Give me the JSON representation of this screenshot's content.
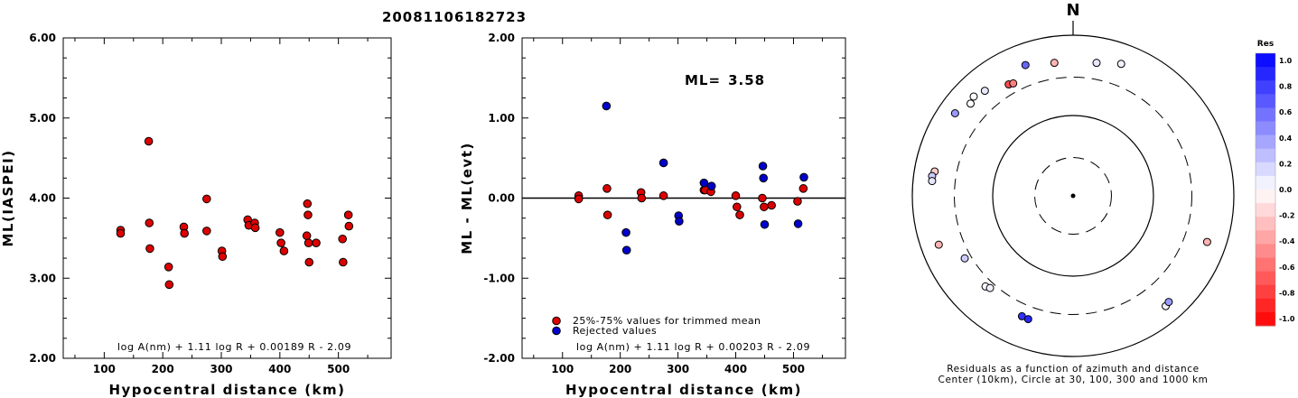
{
  "title": "20081106182723",
  "chart_data": [
    {
      "type": "scatter",
      "name": "ml-vs-distance",
      "xlabel": "Hypocentral distance (km)",
      "ylabel": "ML(IASPEI)",
      "xlim": [
        30,
        590
      ],
      "ylim": [
        2.0,
        6.0
      ],
      "x_ticks": [
        "100",
        "200",
        "300",
        "400",
        "500"
      ],
      "y_ticks": [
        "2.00",
        "3.00",
        "4.00",
        "5.00",
        "6.00"
      ],
      "annotation": "log A(nm) + 1.11 log R + 0.00189 R - 2.09",
      "point_color": "#dd0000",
      "points": [
        [
          128,
          3.6
        ],
        [
          128,
          3.56
        ],
        [
          176,
          4.71
        ],
        [
          177,
          3.69
        ],
        [
          178,
          3.37
        ],
        [
          210,
          3.14
        ],
        [
          211,
          2.92
        ],
        [
          236,
          3.64
        ],
        [
          237,
          3.56
        ],
        [
          275,
          3.99
        ],
        [
          275,
          3.59
        ],
        [
          301,
          3.34
        ],
        [
          302,
          3.27
        ],
        [
          345,
          3.73
        ],
        [
          347,
          3.66
        ],
        [
          357,
          3.69
        ],
        [
          358,
          3.63
        ],
        [
          400,
          3.57
        ],
        [
          402,
          3.44
        ],
        [
          407,
          3.34
        ],
        [
          446,
          3.53
        ],
        [
          447,
          3.93
        ],
        [
          448,
          3.79
        ],
        [
          449,
          3.44
        ],
        [
          450,
          3.2
        ],
        [
          462,
          3.44
        ],
        [
          507,
          3.49
        ],
        [
          508,
          3.2
        ],
        [
          517,
          3.79
        ],
        [
          518,
          3.65
        ]
      ]
    },
    {
      "type": "scatter",
      "name": "residual-vs-distance",
      "xlabel": "Hypocentral distance (km)",
      "ylabel": "ML - ML(evt)",
      "xlim": [
        30,
        590
      ],
      "ylim": [
        -2.0,
        2.0
      ],
      "x_ticks": [
        "100",
        "200",
        "300",
        "400",
        "500"
      ],
      "y_ticks": [
        "-2.00",
        "-1.00",
        "0.00",
        "1.00",
        "2.00"
      ],
      "ml_label": "ML=",
      "ml_value": "3.58",
      "annotation": "log A(nm) + 1.11 log R + 0.00203 R - 2.09",
      "legend": [
        {
          "label": "25%-75% values for trimmed mean",
          "color": "#dd0000"
        },
        {
          "label": "Rejected values",
          "color": "#0000cc"
        }
      ],
      "series": [
        {
          "name": "25%-75% values for trimmed mean",
          "color": "#dd0000",
          "points": [
            [
              128,
              0.03
            ],
            [
              128,
              -0.01
            ],
            [
              177,
              0.12
            ],
            [
              178,
              -0.21
            ],
            [
              236,
              0.07
            ],
            [
              237,
              0.0
            ],
            [
              275,
              0.03
            ],
            [
              345,
              0.1
            ],
            [
              347,
              0.1
            ],
            [
              357,
              0.08
            ],
            [
              400,
              0.03
            ],
            [
              402,
              -0.11
            ],
            [
              407,
              -0.21
            ],
            [
              446,
              0.0
            ],
            [
              449,
              -0.11
            ],
            [
              462,
              -0.09
            ],
            [
              507,
              -0.04
            ],
            [
              517,
              0.12
            ]
          ]
        },
        {
          "name": "Rejected values",
          "color": "#0000cc",
          "points": [
            [
              176,
              1.15
            ],
            [
              210,
              -0.43
            ],
            [
              211,
              -0.65
            ],
            [
              275,
              0.44
            ],
            [
              301,
              -0.22
            ],
            [
              302,
              -0.29
            ],
            [
              345,
              0.19
            ],
            [
              358,
              0.15
            ],
            [
              447,
              0.4
            ],
            [
              448,
              0.25
            ],
            [
              450,
              -0.33
            ],
            [
              508,
              -0.32
            ],
            [
              518,
              0.26
            ]
          ]
        }
      ]
    },
    {
      "type": "scatter",
      "name": "polar-residuals",
      "north_label": "N",
      "caption_line1": "Residuals as a function of azimuth and distance",
      "caption_line2": "Center (10km), Circle at 30, 100, 300 and 1000 km",
      "colorbar_title": "Res",
      "colorbar_ticks": [
        "1.0",
        "0.8",
        "0.6",
        "0.4",
        "0.2",
        "0.0",
        "-0.2",
        "-0.4",
        "-0.6",
        "-0.8",
        "-1.0"
      ],
      "points": [
        {
          "az": 20,
          "dist": 560,
          "res": 0.05
        },
        {
          "az": 352,
          "dist": 470,
          "res": -0.3
        },
        {
          "az": 340,
          "dist": 540,
          "res": 0.6
        },
        {
          "az": 10,
          "dist": 480,
          "res": 0.1
        },
        {
          "az": 330,
          "dist": 400,
          "res": -0.7
        },
        {
          "az": 332,
          "dist": 385,
          "res": -0.5
        },
        {
          "az": 315,
          "dist": 560,
          "res": 0.0
        },
        {
          "az": 312,
          "dist": 520,
          "res": 0.0
        },
        {
          "az": 320,
          "dist": 510,
          "res": 0.1
        },
        {
          "az": 305,
          "dist": 620,
          "res": 0.4
        },
        {
          "az": 280,
          "dist": 560,
          "res": -0.2
        },
        {
          "az": 278,
          "dist": 590,
          "res": 0.2
        },
        {
          "az": 276,
          "dist": 580,
          "res": 0.1
        },
        {
          "az": 250,
          "dist": 600,
          "res": -0.3
        },
        {
          "az": 240,
          "dist": 360,
          "res": 0.2
        },
        {
          "az": 224,
          "dist": 370,
          "res": 0.0
        },
        {
          "az": 222,
          "dist": 350,
          "res": 0.05
        },
        {
          "az": 203,
          "dist": 425,
          "res": 0.8
        },
        {
          "az": 200,
          "dist": 430,
          "res": 0.85
        },
        {
          "az": 140,
          "dist": 620,
          "res": 0.05
        },
        {
          "az": 138,
          "dist": 600,
          "res": 0.4
        },
        {
          "az": 109,
          "dist": 580,
          "res": -0.3
        }
      ]
    }
  ]
}
